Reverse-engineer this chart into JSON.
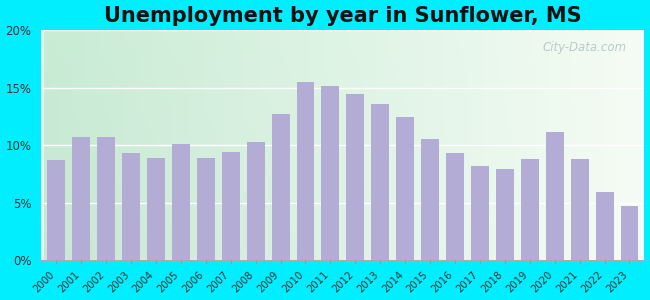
{
  "title": "Unemployment by year in Sunflower, MS",
  "years": [
    2000,
    2001,
    2002,
    2003,
    2004,
    2005,
    2006,
    2007,
    2008,
    2009,
    2010,
    2011,
    2012,
    2013,
    2014,
    2015,
    2016,
    2017,
    2018,
    2019,
    2020,
    2021,
    2022,
    2023
  ],
  "values": [
    8.7,
    10.7,
    10.7,
    9.3,
    8.9,
    10.1,
    8.9,
    9.4,
    10.3,
    12.7,
    15.5,
    15.1,
    14.4,
    13.6,
    12.4,
    10.5,
    9.3,
    8.2,
    7.9,
    8.8,
    11.1,
    8.8,
    5.9,
    4.7
  ],
  "bar_color": "#b3acd4",
  "outer_bg": "#00eeff",
  "plot_bg_left": "#c8ecd4",
  "plot_bg_right": "#f0f8f0",
  "ylim": [
    0,
    20
  ],
  "yticks": [
    0,
    5,
    10,
    15,
    20
  ],
  "ytick_labels": [
    "0%",
    "5%",
    "10%",
    "15%",
    "20%"
  ],
  "title_fontsize": 15,
  "watermark_text": "City-Data.com"
}
